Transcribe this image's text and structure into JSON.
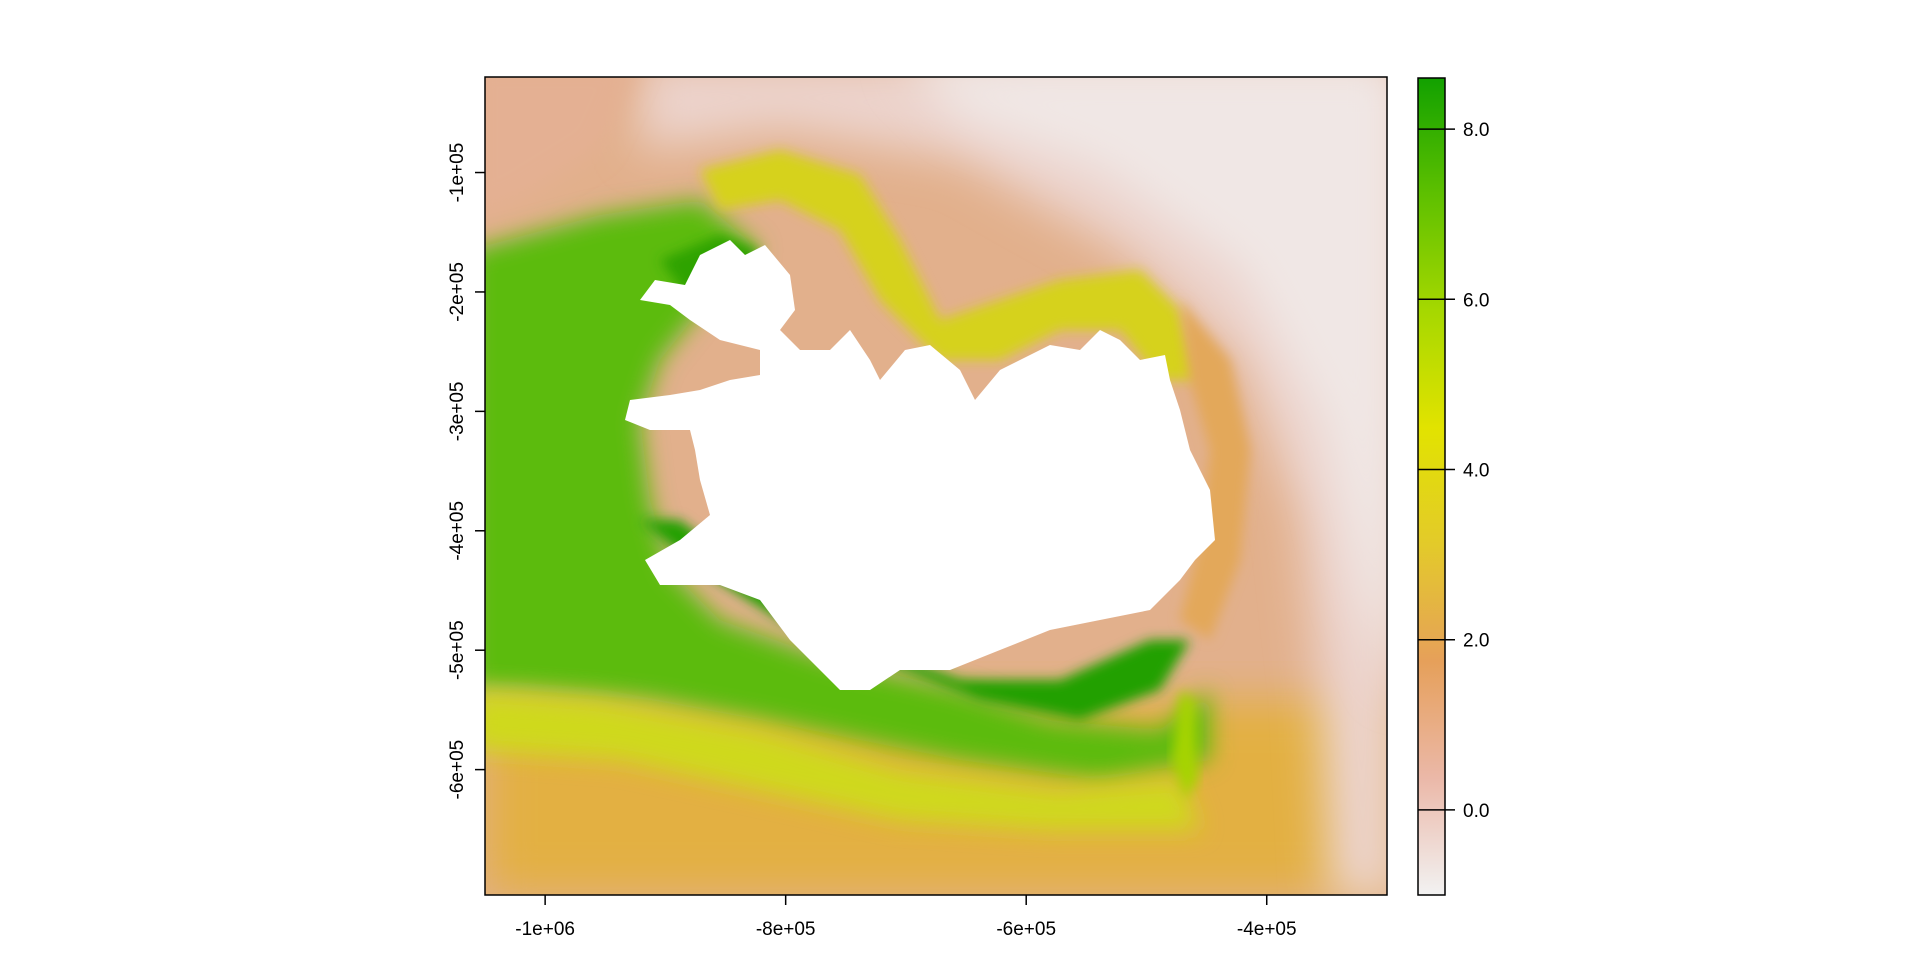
{
  "chart_data": {
    "type": "heatmap",
    "title": "",
    "xlabel": "",
    "ylabel": "",
    "xlim": [
      -1050000,
      -300000
    ],
    "ylim": [
      -705000,
      -20000
    ],
    "x_ticks": [
      {
        "value": -1000000,
        "label": "-1e+06"
      },
      {
        "value": -800000,
        "label": "-8e+05"
      },
      {
        "value": -600000,
        "label": "-6e+05"
      },
      {
        "value": -400000,
        "label": "-4e+05"
      }
    ],
    "y_ticks": [
      {
        "value": -100000,
        "label": "-1e+05"
      },
      {
        "value": -200000,
        "label": "-2e+05"
      },
      {
        "value": -300000,
        "label": "-3e+05"
      },
      {
        "value": -400000,
        "label": "-4e+05"
      },
      {
        "value": -500000,
        "label": "-5e+05"
      },
      {
        "value": -600000,
        "label": "-6e+05"
      }
    ],
    "legend": {
      "placement": "right",
      "range": [
        -1.0,
        8.6
      ],
      "ticks": [
        {
          "value": 0.0,
          "label": "0.0"
        },
        {
          "value": 2.0,
          "label": "2.0"
        },
        {
          "value": 4.0,
          "label": "4.0"
        },
        {
          "value": 6.0,
          "label": "6.0"
        },
        {
          "value": 8.0,
          "label": "8.0"
        }
      ],
      "colors": [
        "#f2f2f2",
        "#ebb8a8",
        "#e6a05a",
        "#e3ca2a",
        "#e2e300",
        "#a6d800",
        "#5ec000",
        "#12a100"
      ]
    },
    "grid": false,
    "na_region": "white landmass (no data) in the centre of the map"
  }
}
